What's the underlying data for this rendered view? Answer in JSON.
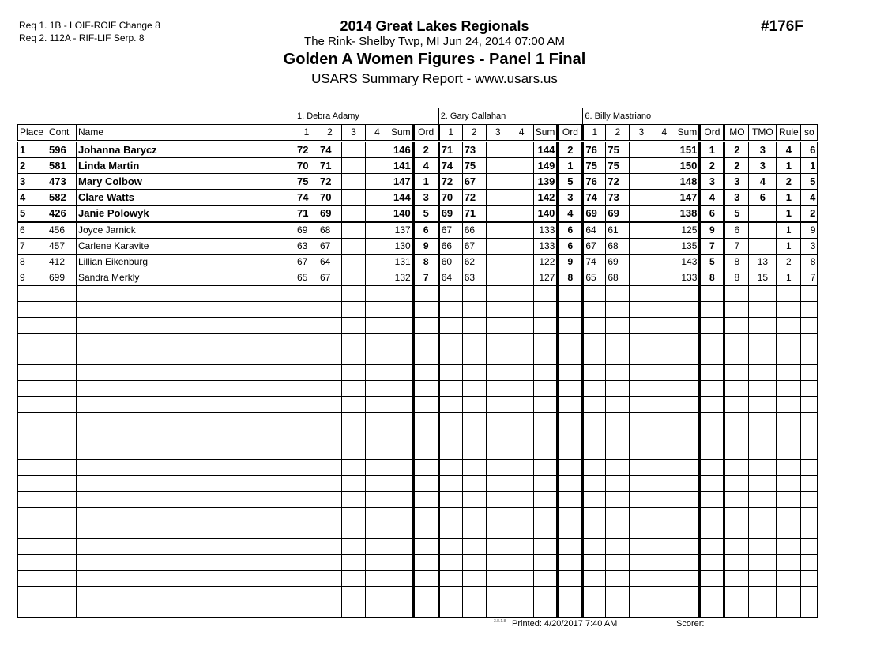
{
  "requirements": [
    "Req  1.  1B - LOIF-ROIF Change 8",
    "Req  2.  112A - RIF-LIF Serp. 8"
  ],
  "header": {
    "title": "2014 Great Lakes Regionals",
    "location": "The Rink- Shelby Twp, MI  Jun 24, 2014  07:00 AM",
    "event": "Golden A Women Figures - Panel 1 Final",
    "report": "USARS Summary Report - www.usars.us",
    "event_number": "#176F"
  },
  "judges": [
    "1.  Debra Adamy",
    "2.  Gary Callahan",
    "6.  Billy Mastriano"
  ],
  "columns": {
    "place": "Place",
    "cont": "Cont",
    "name": "Name",
    "j": [
      "1",
      "2",
      "3",
      "4",
      "Sum",
      "Ord"
    ],
    "mo": "MO",
    "tmo": "TMO",
    "rule": "Rule",
    "so": "so"
  },
  "rows": [
    {
      "place": "1",
      "cont": "596",
      "name": "Johanna Barycz",
      "j": [
        [
          "72",
          "74",
          "",
          "",
          "146",
          "2"
        ],
        [
          "71",
          "73",
          "",
          "",
          "144",
          "2"
        ],
        [
          "76",
          "75",
          "",
          "",
          "151",
          "1"
        ]
      ],
      "mo": "2",
      "tmo": "3",
      "rule": "4",
      "so": "6"
    },
    {
      "place": "2",
      "cont": "581",
      "name": "Linda Martin",
      "j": [
        [
          "70",
          "71",
          "",
          "",
          "141",
          "4"
        ],
        [
          "74",
          "75",
          "",
          "",
          "149",
          "1"
        ],
        [
          "75",
          "75",
          "",
          "",
          "150",
          "2"
        ]
      ],
      "mo": "2",
      "tmo": "3",
      "rule": "1",
      "so": "1"
    },
    {
      "place": "3",
      "cont": "473",
      "name": "Mary Colbow",
      "j": [
        [
          "75",
          "72",
          "",
          "",
          "147",
          "1"
        ],
        [
          "72",
          "67",
          "",
          "",
          "139",
          "5"
        ],
        [
          "76",
          "72",
          "",
          "",
          "148",
          "3"
        ]
      ],
      "mo": "3",
      "tmo": "4",
      "rule": "2",
      "so": "5"
    },
    {
      "place": "4",
      "cont": "582",
      "name": "Clare Watts",
      "j": [
        [
          "74",
          "70",
          "",
          "",
          "144",
          "3"
        ],
        [
          "70",
          "72",
          "",
          "",
          "142",
          "3"
        ],
        [
          "74",
          "73",
          "",
          "",
          "147",
          "4"
        ]
      ],
      "mo": "3",
      "tmo": "6",
      "rule": "1",
      "so": "4"
    },
    {
      "place": "5",
      "cont": "426",
      "name": "Janie Polowyk",
      "j": [
        [
          "71",
          "69",
          "",
          "",
          "140",
          "5"
        ],
        [
          "69",
          "71",
          "",
          "",
          "140",
          "4"
        ],
        [
          "69",
          "69",
          "",
          "",
          "138",
          "6"
        ]
      ],
      "mo": "5",
      "tmo": "",
      "rule": "1",
      "so": "2"
    },
    {
      "place": "6",
      "cont": "456",
      "name": "Joyce Jarnick",
      "j": [
        [
          "69",
          "68",
          "",
          "",
          "137",
          "6"
        ],
        [
          "67",
          "66",
          "",
          "",
          "133",
          "6"
        ],
        [
          "64",
          "61",
          "",
          "",
          "125",
          "9"
        ]
      ],
      "mo": "6",
      "tmo": "",
      "rule": "1",
      "so": "9"
    },
    {
      "place": "7",
      "cont": "457",
      "name": "Carlene Karavite",
      "j": [
        [
          "63",
          "67",
          "",
          "",
          "130",
          "9"
        ],
        [
          "66",
          "67",
          "",
          "",
          "133",
          "6"
        ],
        [
          "67",
          "68",
          "",
          "",
          "135",
          "7"
        ]
      ],
      "mo": "7",
      "tmo": "",
      "rule": "1",
      "so": "3"
    },
    {
      "place": "8",
      "cont": "412",
      "name": "Lillian Eikenburg",
      "j": [
        [
          "67",
          "64",
          "",
          "",
          "131",
          "8"
        ],
        [
          "60",
          "62",
          "",
          "",
          "122",
          "9"
        ],
        [
          "74",
          "69",
          "",
          "",
          "143",
          "5"
        ]
      ],
      "mo": "8",
      "tmo": "13",
      "rule": "2",
      "so": "8"
    },
    {
      "place": "9",
      "cont": "699",
      "name": "Sandra Merkly",
      "j": [
        [
          "65",
          "67",
          "",
          "",
          "132",
          "7"
        ],
        [
          "64",
          "63",
          "",
          "",
          "127",
          "8"
        ],
        [
          "65",
          "68",
          "",
          "",
          "133",
          "8"
        ]
      ],
      "mo": "8",
      "tmo": "15",
      "rule": "1",
      "so": "7"
    }
  ],
  "footer": {
    "version": "3.8.1.8",
    "printed": "Printed:  4/20/2017  7:40 AM",
    "scorer": "Scorer:"
  }
}
